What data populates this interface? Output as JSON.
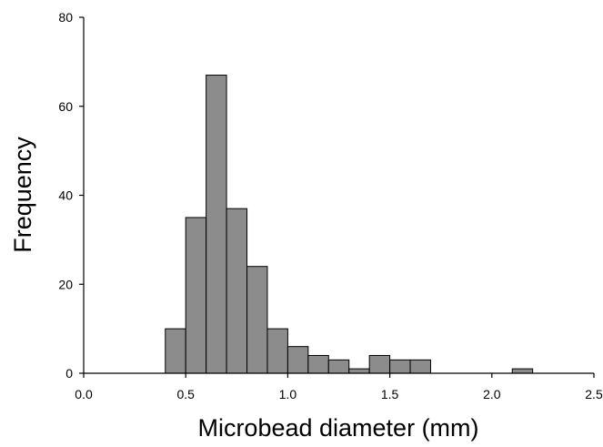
{
  "chart_data": {
    "type": "bar",
    "title": "",
    "xlabel": "Microbead diameter (mm)",
    "ylabel": "Frequency",
    "xlim": [
      0,
      2.5
    ],
    "ylim": [
      0,
      80
    ],
    "x_ticks": [
      0.0,
      0.5,
      1.0,
      1.5,
      2.0,
      2.5
    ],
    "x_tick_labels": [
      "0.0",
      "0.5",
      "1.0",
      "1.5",
      "2.0",
      "2.5"
    ],
    "y_ticks": [
      0,
      20,
      40,
      60,
      80
    ],
    "y_tick_labels": [
      "0",
      "20",
      "40",
      "60",
      "80"
    ],
    "bin_width": 0.1,
    "bins": [
      {
        "start": 0.4,
        "end": 0.5,
        "value": 10
      },
      {
        "start": 0.5,
        "end": 0.6,
        "value": 35
      },
      {
        "start": 0.6,
        "end": 0.7,
        "value": 67
      },
      {
        "start": 0.7,
        "end": 0.8,
        "value": 37
      },
      {
        "start": 0.8,
        "end": 0.9,
        "value": 24
      },
      {
        "start": 0.9,
        "end": 1.0,
        "value": 10
      },
      {
        "start": 1.0,
        "end": 1.1,
        "value": 6
      },
      {
        "start": 1.1,
        "end": 1.2,
        "value": 4
      },
      {
        "start": 1.2,
        "end": 1.3,
        "value": 3
      },
      {
        "start": 1.3,
        "end": 1.4,
        "value": 1
      },
      {
        "start": 1.4,
        "end": 1.5,
        "value": 4
      },
      {
        "start": 1.5,
        "end": 1.6,
        "value": 3
      },
      {
        "start": 1.6,
        "end": 1.7,
        "value": 3
      },
      {
        "start": 2.1,
        "end": 2.2,
        "value": 1
      }
    ],
    "bar_color": "#8c8c8c",
    "bar_edge_color": "#000000",
    "grid": false,
    "legend": "none"
  }
}
